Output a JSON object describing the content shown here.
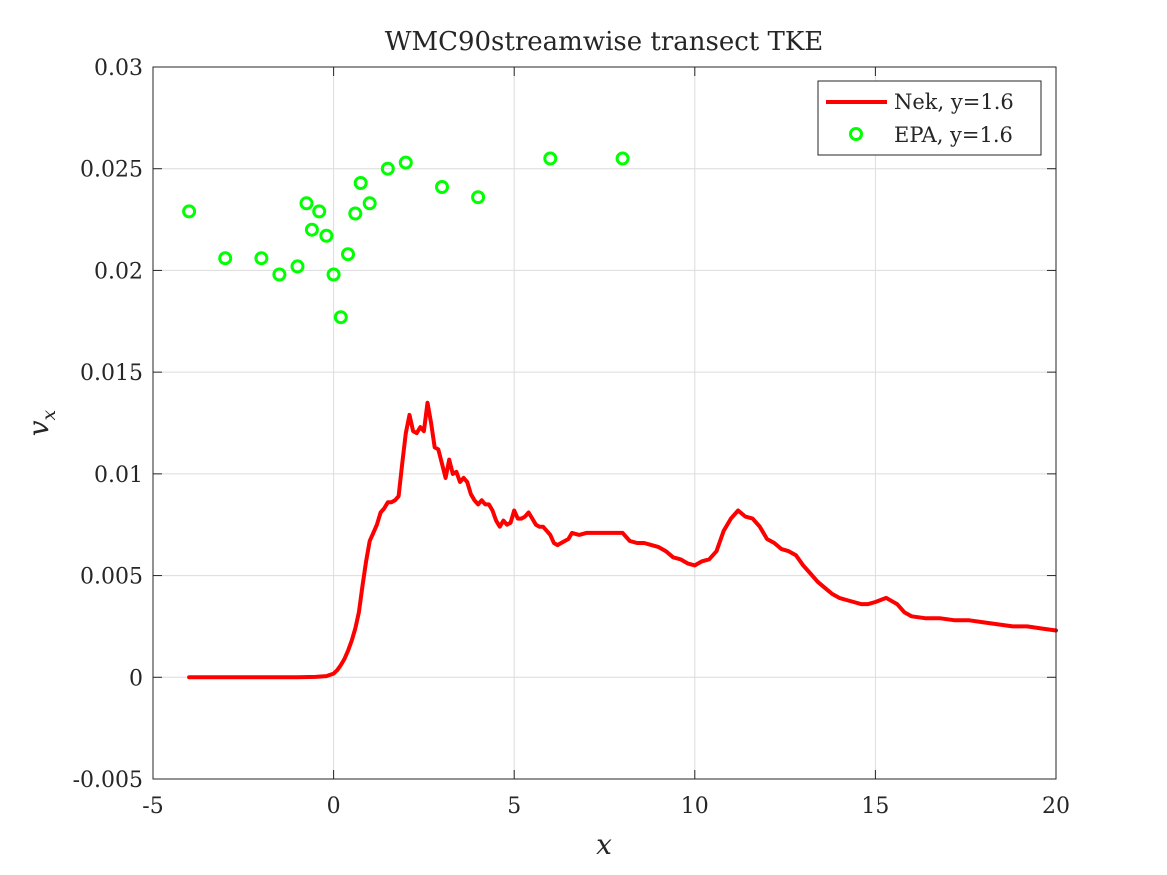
{
  "chart_data": {
    "type": "line",
    "title": "WMC90streamwise transect TKE",
    "xlabel": "x",
    "ylabel": "v_x",
    "xlim": [
      -5,
      20
    ],
    "ylim": [
      -0.005,
      0.03
    ],
    "x_ticks": [
      "-5",
      "0",
      "5",
      "10",
      "15",
      "20"
    ],
    "y_ticks": [
      "-0.005",
      "0",
      "0.005",
      "0.01",
      "0.015",
      "0.02",
      "0.025",
      "0.03"
    ],
    "x_tick_values": [
      -5,
      0,
      5,
      10,
      15,
      20
    ],
    "y_tick_values": [
      -0.005,
      0,
      0.005,
      0.01,
      0.015,
      0.02,
      0.025,
      0.03
    ],
    "grid": true,
    "legend_position": "top-right",
    "series": [
      {
        "name": "Nek, y=1.6",
        "kind": "line",
        "color": "#ff0000",
        "x": [
          -4,
          -3,
          -2,
          -1,
          -0.5,
          -0.2,
          0,
          0.1,
          0.2,
          0.3,
          0.4,
          0.5,
          0.6,
          0.7,
          0.8,
          0.9,
          1.0,
          1.1,
          1.2,
          1.3,
          1.4,
          1.5,
          1.6,
          1.7,
          1.8,
          1.9,
          2.0,
          2.1,
          2.2,
          2.3,
          2.4,
          2.5,
          2.6,
          2.7,
          2.8,
          2.9,
          3.0,
          3.1,
          3.2,
          3.3,
          3.4,
          3.5,
          3.6,
          3.7,
          3.8,
          3.9,
          4.0,
          4.1,
          4.2,
          4.3,
          4.4,
          4.5,
          4.6,
          4.7,
          4.8,
          4.9,
          5.0,
          5.1,
          5.2,
          5.3,
          5.4,
          5.5,
          5.6,
          5.7,
          5.8,
          5.9,
          6.0,
          6.1,
          6.2,
          6.3,
          6.4,
          6.5,
          6.6,
          6.8,
          7.0,
          7.2,
          7.4,
          7.6,
          7.8,
          8.0,
          8.2,
          8.4,
          8.6,
          8.8,
          9.0,
          9.2,
          9.4,
          9.6,
          9.8,
          10.0,
          10.2,
          10.4,
          10.6,
          10.8,
          11.0,
          11.2,
          11.4,
          11.6,
          11.8,
          12.0,
          12.2,
          12.4,
          12.6,
          12.8,
          13.0,
          13.2,
          13.4,
          13.6,
          13.8,
          14.0,
          14.2,
          14.4,
          14.6,
          14.8,
          15.0,
          15.3,
          15.6,
          15.8,
          16.0,
          16.4,
          16.8,
          17.2,
          17.6,
          18.0,
          18.4,
          18.8,
          19.2,
          19.6,
          20.0
        ],
        "values": [
          0.0,
          0.0,
          0.0,
          0.0,
          2e-05,
          6e-05,
          0.00018,
          0.00035,
          0.0006,
          0.0009,
          0.0013,
          0.0018,
          0.0024,
          0.0032,
          0.0045,
          0.0057,
          0.0067,
          0.0071,
          0.0075,
          0.0081,
          0.0083,
          0.0086,
          0.0086,
          0.0087,
          0.0089,
          0.0105,
          0.012,
          0.0129,
          0.0121,
          0.012,
          0.0123,
          0.0121,
          0.0135,
          0.0125,
          0.0113,
          0.0112,
          0.0105,
          0.0098,
          0.0107,
          0.01,
          0.0101,
          0.0096,
          0.0098,
          0.0096,
          0.009,
          0.0087,
          0.0085,
          0.0087,
          0.0085,
          0.0085,
          0.0082,
          0.0077,
          0.0074,
          0.0077,
          0.0075,
          0.0076,
          0.0082,
          0.0078,
          0.0078,
          0.0079,
          0.0081,
          0.0078,
          0.0075,
          0.0074,
          0.0074,
          0.0072,
          0.007,
          0.0066,
          0.0065,
          0.0066,
          0.0067,
          0.0068,
          0.0071,
          0.007,
          0.0071,
          0.0071,
          0.0071,
          0.0071,
          0.0071,
          0.0071,
          0.0067,
          0.0066,
          0.0066,
          0.0065,
          0.0064,
          0.0062,
          0.0059,
          0.0058,
          0.0056,
          0.0055,
          0.0057,
          0.0058,
          0.0062,
          0.0072,
          0.0078,
          0.0082,
          0.0079,
          0.0078,
          0.0074,
          0.0068,
          0.0066,
          0.0063,
          0.0062,
          0.006,
          0.0055,
          0.0051,
          0.0047,
          0.0044,
          0.0041,
          0.0039,
          0.0038,
          0.0037,
          0.0036,
          0.0036,
          0.0037,
          0.0039,
          0.0036,
          0.0032,
          0.003,
          0.0029,
          0.0029,
          0.0028,
          0.0028,
          0.0027,
          0.0026,
          0.0025,
          0.0025,
          0.0024,
          0.0023
        ]
      },
      {
        "name": "EPA, y=1.6",
        "kind": "scatter",
        "color": "#00ff00",
        "x": [
          -4,
          -3,
          -2,
          -1.5,
          -1,
          -0.75,
          -0.6,
          -0.4,
          -0.2,
          0,
          0.2,
          0.4,
          0.6,
          0.75,
          1,
          1.5,
          2,
          3,
          4,
          6,
          8
        ],
        "values": [
          0.0229,
          0.0206,
          0.0206,
          0.0198,
          0.0202,
          0.0233,
          0.022,
          0.0229,
          0.0217,
          0.0198,
          0.0177,
          0.0208,
          0.0228,
          0.0243,
          0.0233,
          0.025,
          0.0253,
          0.0241,
          0.0236,
          0.0255,
          0.0255
        ]
      }
    ]
  }
}
